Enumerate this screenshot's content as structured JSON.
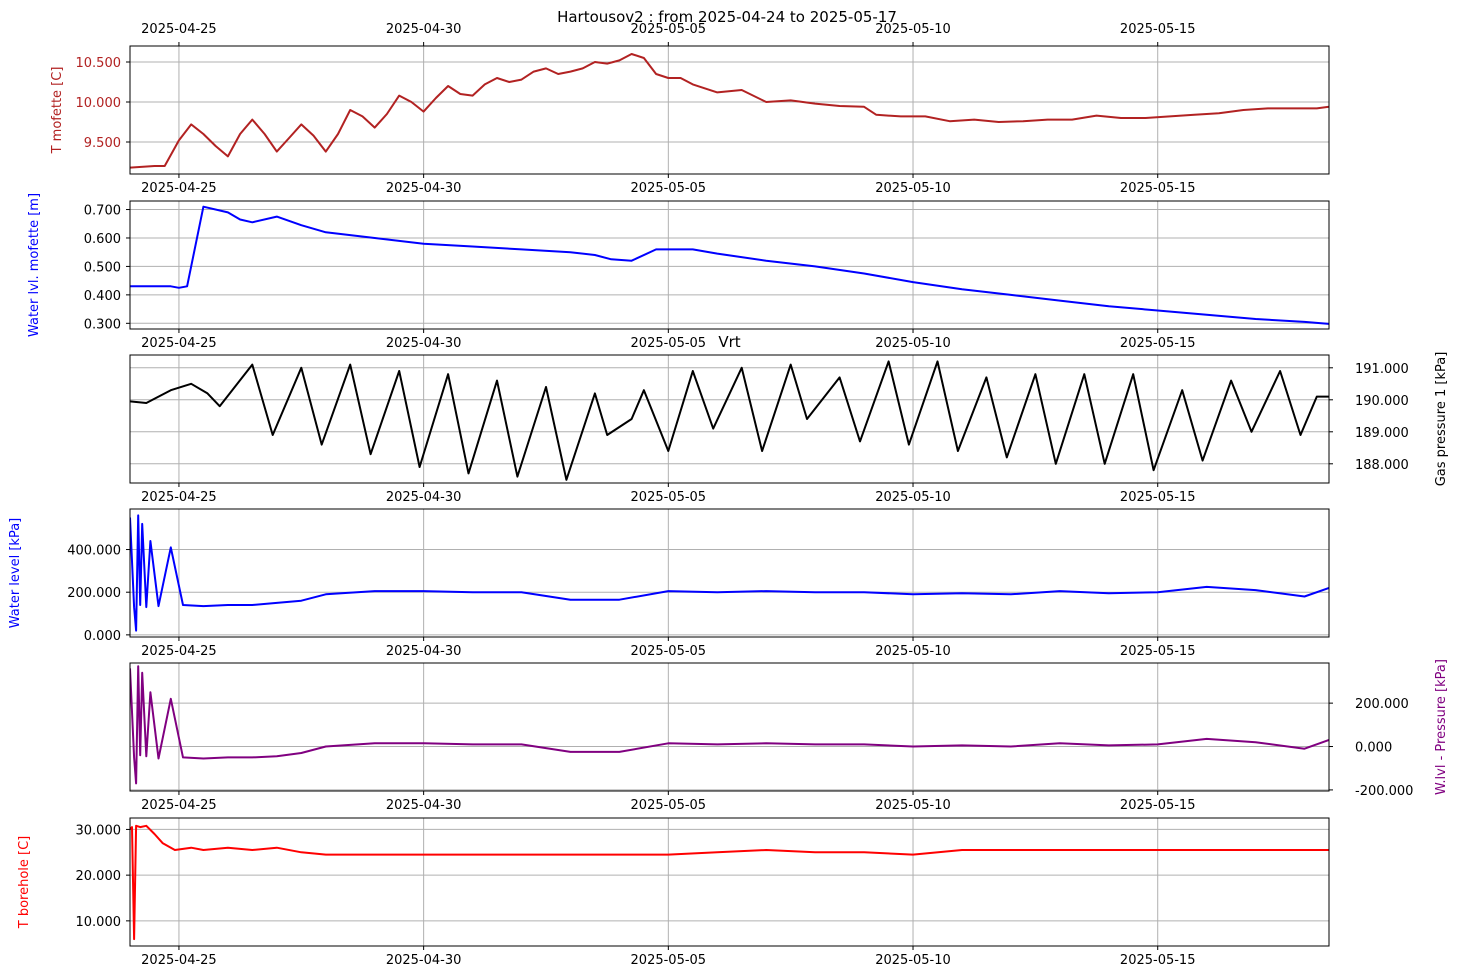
{
  "title": "Hartousov2 : from 2025-04-24 to 2025-05-17",
  "chart_data": [
    {
      "type": "line",
      "ylabel": "T mofette [C]",
      "ylabel_side": "left",
      "color": "#b22222",
      "ylim": [
        9.1,
        10.7
      ],
      "yticks": [
        9.5,
        10.0,
        10.5
      ],
      "ytick_labels": [
        "9.500",
        "10.000",
        "10.500"
      ],
      "xlim": [
        "2025-04-24",
        "2025-05-18.5"
      ],
      "xticks": [
        "2025-04-25",
        "2025-04-30",
        "2025-05-05",
        "2025-05-10",
        "2025-05-15"
      ],
      "xtick_position": "both",
      "grid": true,
      "series": [
        {
          "x": [
            "2025-04-24T00:00",
            "2025-04-24T12:00",
            "2025-04-24T17:00",
            "2025-04-25T00:00",
            "2025-04-25T06:00",
            "2025-04-25T12:00",
            "2025-04-25T18:00",
            "2025-04-26T00:00",
            "2025-04-26T06:00",
            "2025-04-26T12:00",
            "2025-04-26T18:00",
            "2025-04-27T00:00",
            "2025-04-27T06:00",
            "2025-04-27T12:00",
            "2025-04-27T18:00",
            "2025-04-28T00:00",
            "2025-04-28T06:00",
            "2025-04-28T12:00",
            "2025-04-28T18:00",
            "2025-04-29T00:00",
            "2025-04-29T06:00",
            "2025-04-29T12:00",
            "2025-04-29T18:00",
            "2025-04-30T00:00",
            "2025-04-30T06:00",
            "2025-04-30T12:00",
            "2025-04-30T18:00",
            "2025-05-01T00:00",
            "2025-05-01T06:00",
            "2025-05-01T12:00",
            "2025-05-01T18:00",
            "2025-05-02T00:00",
            "2025-05-02T06:00",
            "2025-05-02T12:00",
            "2025-05-02T18:00",
            "2025-05-03T00:00",
            "2025-05-03T06:00",
            "2025-05-03T12:00",
            "2025-05-03T18:00",
            "2025-05-04T00:00",
            "2025-05-04T06:00",
            "2025-05-04T12:00",
            "2025-05-04T18:00",
            "2025-05-05T00:00",
            "2025-05-05T06:00",
            "2025-05-05T12:00",
            "2025-05-06T00:00",
            "2025-05-06T12:00",
            "2025-05-07T00:00",
            "2025-05-07T12:00",
            "2025-05-08T00:00",
            "2025-05-08T12:00",
            "2025-05-09T00:00",
            "2025-05-09T06:00",
            "2025-05-09T18:00",
            "2025-05-10T06:00",
            "2025-05-10T18:00",
            "2025-05-11T06:00",
            "2025-05-11T18:00",
            "2025-05-12T06:00",
            "2025-05-12T18:00",
            "2025-05-13T06:00",
            "2025-05-13T18:00",
            "2025-05-14T06:00",
            "2025-05-14T18:00",
            "2025-05-15T06:00",
            "2025-05-15T18:00",
            "2025-05-16T06:00",
            "2025-05-16T18:00",
            "2025-05-17T06:00",
            "2025-05-17T18:00",
            "2025-05-18T06:00",
            "2025-05-18T12:00"
          ],
          "y": [
            9.18,
            9.2,
            9.2,
            9.52,
            9.72,
            9.6,
            9.45,
            9.32,
            9.6,
            9.78,
            9.6,
            9.38,
            9.55,
            9.72,
            9.58,
            9.38,
            9.6,
            9.9,
            9.82,
            9.68,
            9.85,
            10.08,
            10.0,
            9.88,
            10.05,
            10.2,
            10.1,
            10.08,
            10.22,
            10.3,
            10.25,
            10.28,
            10.38,
            10.42,
            10.35,
            10.38,
            10.42,
            10.5,
            10.48,
            10.52,
            10.6,
            10.55,
            10.35,
            10.3,
            10.3,
            10.22,
            10.12,
            10.15,
            10.0,
            10.02,
            9.98,
            9.95,
            9.94,
            9.84,
            9.82,
            9.82,
            9.76,
            9.78,
            9.75,
            9.76,
            9.78,
            9.78,
            9.83,
            9.8,
            9.8,
            9.82,
            9.84,
            9.86,
            9.9,
            9.92,
            9.92,
            9.92,
            9.94
          ]
        }
      ]
    },
    {
      "type": "line",
      "ylabel": "Water lvl. mofette [m]",
      "ylabel_side": "left",
      "color": "#0000ff",
      "ylim": [
        0.28,
        0.73
      ],
      "yticks": [
        0.3,
        0.4,
        0.5,
        0.6,
        0.7
      ],
      "ytick_labels": [
        "0.300",
        "0.400",
        "0.500",
        "0.600",
        "0.700"
      ],
      "xlim": [
        "2025-04-24",
        "2025-05-18.5"
      ],
      "xticks": [
        "2025-04-25",
        "2025-04-30",
        "2025-05-05",
        "2025-05-10",
        "2025-05-15"
      ],
      "grid": true,
      "series": [
        {
          "x": [
            "2025-04-24T00:00",
            "2025-04-24T20:00",
            "2025-04-25T00:00",
            "2025-04-25T04:00",
            "2025-04-25T12:00",
            "2025-04-26T00:00",
            "2025-04-26T06:00",
            "2025-04-26T12:00",
            "2025-04-27T00:00",
            "2025-04-27T12:00",
            "2025-04-28T00:00",
            "2025-04-29T00:00",
            "2025-04-30T00:00",
            "2025-05-01T00:00",
            "2025-05-02T00:00",
            "2025-05-03T00:00",
            "2025-05-03T12:00",
            "2025-05-03T20:00",
            "2025-05-04T06:00",
            "2025-05-04T18:00",
            "2025-05-05T12:00",
            "2025-05-06T00:00",
            "2025-05-07T00:00",
            "2025-05-08T00:00",
            "2025-05-09T00:00",
            "2025-05-10T00:00",
            "2025-05-11T00:00",
            "2025-05-12T00:00",
            "2025-05-13T00:00",
            "2025-05-14T00:00",
            "2025-05-15T00:00",
            "2025-05-16T00:00",
            "2025-05-17T00:00",
            "2025-05-18T00:00",
            "2025-05-18T12:00"
          ],
          "y": [
            0.43,
            0.43,
            0.425,
            0.43,
            0.71,
            0.69,
            0.665,
            0.655,
            0.675,
            0.645,
            0.62,
            0.6,
            0.58,
            0.57,
            0.56,
            0.55,
            0.54,
            0.525,
            0.52,
            0.56,
            0.56,
            0.545,
            0.52,
            0.5,
            0.475,
            0.445,
            0.42,
            0.4,
            0.38,
            0.36,
            0.345,
            0.33,
            0.315,
            0.305,
            0.298
          ]
        }
      ]
    },
    {
      "type": "line",
      "title": "Vrt",
      "ylabel": "Gas pressure 1 [kPa]",
      "ylabel_side": "right",
      "color": "#000000",
      "ylim": [
        187.4,
        191.4
      ],
      "yticks": [
        188.0,
        189.0,
        190.0,
        191.0
      ],
      "ytick_labels": [
        "188.000",
        "189.000",
        "190.000",
        "191.000"
      ],
      "xlim": [
        "2025-04-24",
        "2025-05-18.5"
      ],
      "xticks": [
        "2025-04-25",
        "2025-04-30",
        "2025-05-05",
        "2025-05-10",
        "2025-05-15"
      ],
      "grid": true,
      "series": [
        {
          "x": [
            "2025-04-24T00:00",
            "2025-04-24T08:00",
            "2025-04-24T20:00",
            "2025-04-25T06:00",
            "2025-04-25T14:00",
            "2025-04-25T20:00",
            "2025-04-26T12:00",
            "2025-04-26T22:00",
            "2025-04-27T12:00",
            "2025-04-27T22:00",
            "2025-04-28T12:00",
            "2025-04-28T22:00",
            "2025-04-29T12:00",
            "2025-04-29T22:00",
            "2025-04-30T12:00",
            "2025-04-30T22:00",
            "2025-05-01T12:00",
            "2025-05-01T22:00",
            "2025-05-02T12:00",
            "2025-05-02T22:00",
            "2025-05-03T12:00",
            "2025-05-03T18:00",
            "2025-05-04T06:00",
            "2025-05-04T12:00",
            "2025-05-05T00:00",
            "2025-05-05T12:00",
            "2025-05-05T22:00",
            "2025-05-06T12:00",
            "2025-05-06T22:00",
            "2025-05-07T12:00",
            "2025-05-07T20:00",
            "2025-05-08T12:00",
            "2025-05-08T22:00",
            "2025-05-09T12:00",
            "2025-05-09T22:00",
            "2025-05-10T12:00",
            "2025-05-10T22:00",
            "2025-05-11T12:00",
            "2025-05-11T22:00",
            "2025-05-12T12:00",
            "2025-05-12T22:00",
            "2025-05-13T12:00",
            "2025-05-13T22:00",
            "2025-05-14T12:00",
            "2025-05-14T22:00",
            "2025-05-15T12:00",
            "2025-05-15T22:00",
            "2025-05-16T12:00",
            "2025-05-16T22:00",
            "2025-05-17T12:00",
            "2025-05-17T22:00",
            "2025-05-18T06:00",
            "2025-05-18T12:00"
          ],
          "y": [
            189.95,
            189.9,
            190.3,
            190.5,
            190.2,
            189.8,
            191.1,
            188.9,
            191.0,
            188.6,
            191.1,
            188.3,
            190.9,
            187.9,
            190.8,
            187.7,
            190.6,
            187.6,
            190.4,
            187.5,
            190.2,
            188.9,
            189.4,
            190.3,
            188.4,
            190.9,
            189.1,
            191.0,
            188.4,
            191.1,
            189.4,
            190.7,
            188.7,
            191.2,
            188.6,
            191.2,
            188.4,
            190.7,
            188.2,
            190.8,
            188.0,
            190.8,
            188.0,
            190.8,
            187.8,
            190.3,
            188.1,
            190.6,
            189.0,
            190.9,
            188.9,
            190.1,
            190.1
          ]
        }
      ]
    },
    {
      "type": "line",
      "ylabel": "Water level [kPa]",
      "ylabel_side": "left",
      "color": "#0000ff",
      "ylim": [
        -10,
        590
      ],
      "yticks": [
        0,
        200,
        400
      ],
      "ytick_labels": [
        "0.000",
        "200.000",
        "400.000"
      ],
      "xlim": [
        "2025-04-24",
        "2025-05-18.5"
      ],
      "xticks": [
        "2025-04-25",
        "2025-04-30",
        "2025-05-05",
        "2025-05-10",
        "2025-05-15"
      ],
      "grid": true,
      "series": [
        {
          "x": [
            "2025-04-24T00:00",
            "2025-04-24T02:00",
            "2025-04-24T03:00",
            "2025-04-24T04:00",
            "2025-04-24T05:00",
            "2025-04-24T06:00",
            "2025-04-24T08:00",
            "2025-04-24T10:00",
            "2025-04-24T14:00",
            "2025-04-24T20:00",
            "2025-04-25T02:00",
            "2025-04-25T12:00",
            "2025-04-26T00:00",
            "2025-04-26T12:00",
            "2025-04-27T00:00",
            "2025-04-27T12:00",
            "2025-04-28T00:00",
            "2025-04-29T00:00",
            "2025-04-30T00:00",
            "2025-05-01T00:00",
            "2025-05-02T00:00",
            "2025-05-03T00:00",
            "2025-05-04T00:00",
            "2025-05-05T00:00",
            "2025-05-06T00:00",
            "2025-05-07T00:00",
            "2025-05-08T00:00",
            "2025-05-09T00:00",
            "2025-05-10T00:00",
            "2025-05-11T00:00",
            "2025-05-12T00:00",
            "2025-05-13T00:00",
            "2025-05-14T00:00",
            "2025-05-15T00:00",
            "2025-05-16T00:00",
            "2025-05-17T00:00",
            "2025-05-18T00:00",
            "2025-05-18T12:00"
          ],
          "y": [
            550,
            130,
            20,
            560,
            140,
            520,
            130,
            440,
            135,
            410,
            140,
            135,
            140,
            140,
            150,
            160,
            190,
            205,
            205,
            200,
            200,
            165,
            165,
            205,
            200,
            205,
            200,
            200,
            190,
            195,
            190,
            205,
            195,
            200,
            225,
            210,
            180,
            220
          ]
        }
      ]
    },
    {
      "type": "line",
      "ylabel": "W.lvl - Pressure [kPa]",
      "ylabel_side": "right",
      "color": "#800080",
      "ylim": [
        -205,
        385
      ],
      "yticks": [
        -200,
        0,
        200
      ],
      "ytick_labels": [
        "-200.000",
        "0.000",
        "200.000"
      ],
      "xlim": [
        "2025-04-24",
        "2025-05-18.5"
      ],
      "xticks": [
        "2025-04-25",
        "2025-04-30",
        "2025-05-05",
        "2025-05-10",
        "2025-05-15"
      ],
      "grid": true,
      "series": [
        {
          "x": [
            "2025-04-24T00:00",
            "2025-04-24T02:00",
            "2025-04-24T03:00",
            "2025-04-24T04:00",
            "2025-04-24T05:00",
            "2025-04-24T06:00",
            "2025-04-24T08:00",
            "2025-04-24T10:00",
            "2025-04-24T14:00",
            "2025-04-24T20:00",
            "2025-04-25T02:00",
            "2025-04-25T12:00",
            "2025-04-26T00:00",
            "2025-04-26T12:00",
            "2025-04-27T00:00",
            "2025-04-27T12:00",
            "2025-04-28T00:00",
            "2025-04-29T00:00",
            "2025-04-30T00:00",
            "2025-05-01T00:00",
            "2025-05-02T00:00",
            "2025-05-03T00:00",
            "2025-05-04T00:00",
            "2025-05-05T00:00",
            "2025-05-06T00:00",
            "2025-05-07T00:00",
            "2025-05-08T00:00",
            "2025-05-09T00:00",
            "2025-05-10T00:00",
            "2025-05-11T00:00",
            "2025-05-12T00:00",
            "2025-05-13T00:00",
            "2025-05-14T00:00",
            "2025-05-15T00:00",
            "2025-05-16T00:00",
            "2025-05-17T00:00",
            "2025-05-18T00:00",
            "2025-05-18T12:00"
          ],
          "y": [
            360,
            -50,
            -170,
            370,
            -40,
            340,
            -45,
            250,
            -55,
            220,
            -50,
            -55,
            -50,
            -50,
            -45,
            -30,
            0,
            15,
            15,
            10,
            10,
            -25,
            -25,
            15,
            10,
            15,
            10,
            10,
            0,
            5,
            0,
            15,
            5,
            10,
            35,
            20,
            -10,
            30
          ]
        }
      ]
    },
    {
      "type": "line",
      "ylabel": "T borehole [C]",
      "ylabel_side": "left",
      "color": "#ff0000",
      "ylim": [
        4.5,
        32.5
      ],
      "yticks": [
        10,
        20,
        30
      ],
      "ytick_labels": [
        "10.000",
        "20.000",
        "30.000"
      ],
      "xlim": [
        "2025-04-24",
        "2025-05-18.5"
      ],
      "xticks": [
        "2025-04-25",
        "2025-04-30",
        "2025-05-05",
        "2025-05-10",
        "2025-05-15"
      ],
      "grid": true,
      "series": [
        {
          "x": [
            "2025-04-24T00:00",
            "2025-04-24T01:00",
            "2025-04-24T02:00",
            "2025-04-24T03:00",
            "2025-04-24T05:00",
            "2025-04-24T08:00",
            "2025-04-24T12:00",
            "2025-04-24T16:00",
            "2025-04-24T22:00",
            "2025-04-25T06:00",
            "2025-04-25T12:00",
            "2025-04-26T00:00",
            "2025-04-26T12:00",
            "2025-04-27T00:00",
            "2025-04-27T12:00",
            "2025-04-28T00:00",
            "2025-04-29T00:00",
            "2025-04-30T00:00",
            "2025-05-01T00:00",
            "2025-05-02T00:00",
            "2025-05-03T00:00",
            "2025-05-04T00:00",
            "2025-05-05T00:00",
            "2025-05-06T00:00",
            "2025-05-07T00:00",
            "2025-05-08T00:00",
            "2025-05-09T00:00",
            "2025-05-10T00:00",
            "2025-05-11T00:00",
            "2025-05-12T00:00",
            "2025-05-13T00:00",
            "2025-05-14T00:00",
            "2025-05-15T00:00",
            "2025-05-16T00:00",
            "2025-05-17T00:00",
            "2025-05-18T00:00",
            "2025-05-18T12:00"
          ],
          "y": [
            30,
            30.5,
            6,
            30.8,
            30.5,
            30.8,
            29,
            27,
            25.5,
            26,
            25.5,
            26,
            25.5,
            26,
            25,
            24.5,
            24.5,
            24.5,
            24.5,
            24.5,
            24.5,
            24.5,
            24.5,
            25,
            25.5,
            25,
            25,
            24.5,
            25.5,
            25.5,
            25.5,
            25.5,
            25.5,
            25.5,
            25.5,
            25.5,
            25.5
          ]
        }
      ]
    }
  ]
}
